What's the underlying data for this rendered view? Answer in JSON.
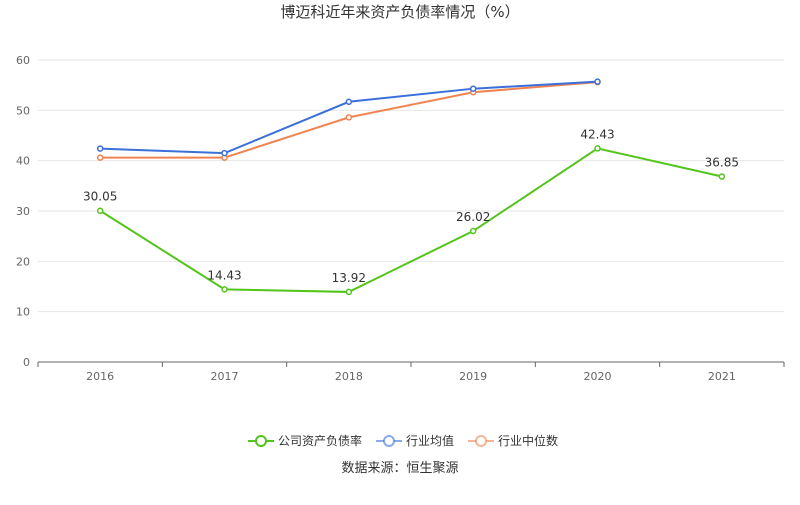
{
  "chart_data": {
    "type": "line",
    "title": "博迈科近年来资产负债率情况（%）",
    "categories": [
      "2016",
      "2017",
      "2018",
      "2019",
      "2020",
      "2021"
    ],
    "ylim": [
      0,
      60
    ],
    "yticks": [
      0,
      10,
      20,
      30,
      40,
      50,
      60
    ],
    "grid": true,
    "legend": "bottom-center",
    "series": [
      {
        "name": "公司资产负债率",
        "color": "#52c41a",
        "values": [
          30.05,
          14.43,
          13.92,
          26.02,
          42.43,
          36.85
        ],
        "labels": true
      },
      {
        "name": "行业均值",
        "color": "#3b6fd9",
        "values": [
          42.4,
          41.5,
          51.7,
          54.3,
          55.7,
          null
        ],
        "labels": false
      },
      {
        "name": "行业中位数",
        "color": "#f08350",
        "values": [
          40.6,
          40.6,
          48.6,
          53.6,
          55.6,
          null
        ],
        "labels": false
      }
    ],
    "source": "数据来源：恒生聚源"
  }
}
